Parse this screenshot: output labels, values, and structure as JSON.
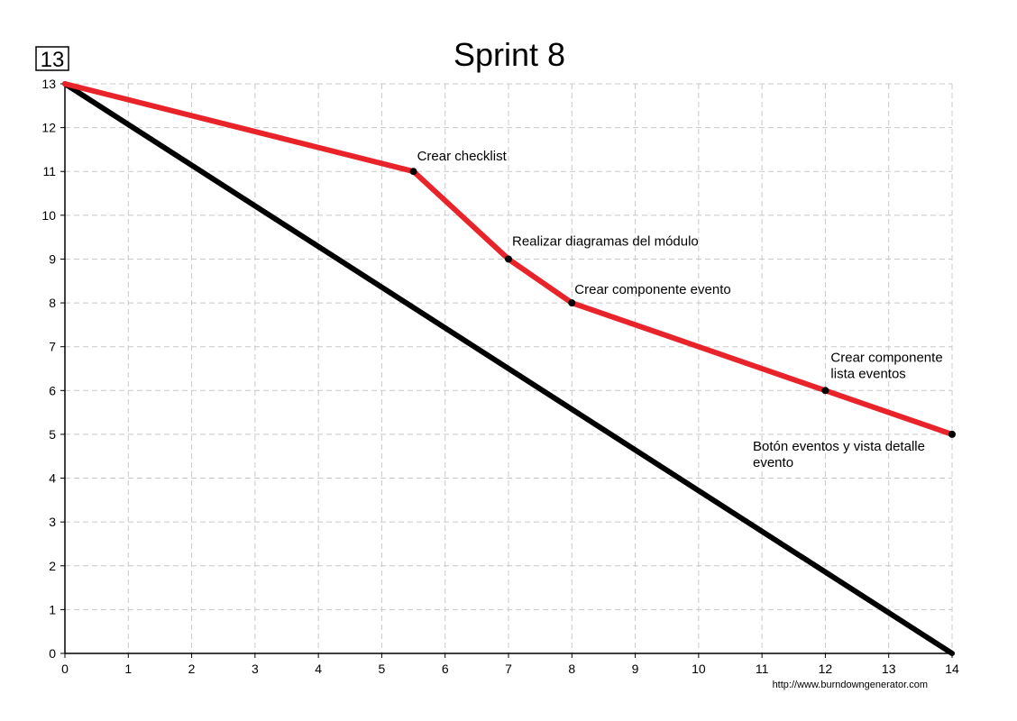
{
  "badge": "13",
  "credit": "http://www.burndowngenerator.com",
  "chart_data": {
    "type": "line",
    "title": "Sprint 8",
    "xlabel": "",
    "ylabel": "",
    "xlim": [
      0,
      14
    ],
    "ylim": [
      0,
      13
    ],
    "x_ticks": [
      0,
      1,
      2,
      3,
      4,
      5,
      6,
      7,
      8,
      9,
      10,
      11,
      12,
      13,
      14
    ],
    "y_ticks": [
      0,
      1,
      2,
      3,
      4,
      5,
      6,
      7,
      8,
      9,
      10,
      11,
      12,
      13
    ],
    "grid": true,
    "series": [
      {
        "color": "#000000",
        "points": [
          [
            0,
            13
          ],
          [
            14,
            0
          ]
        ]
      },
      {
        "color": "#e8232a",
        "points": [
          [
            0,
            13
          ],
          [
            5.5,
            11
          ],
          [
            7,
            9
          ],
          [
            8,
            8
          ],
          [
            12,
            6
          ],
          [
            14,
            5
          ]
        ]
      }
    ],
    "annotations": [
      {
        "x": 5.5,
        "y": 11,
        "lines": [
          "Crear checklist"
        ]
      },
      {
        "x": 7,
        "y": 9,
        "lines": [
          "Realizar diagramas del módulo"
        ]
      },
      {
        "x": 8,
        "y": 8,
        "lines": [
          "Crear componente evento"
        ]
      },
      {
        "x": 12,
        "y": 6,
        "lines": [
          "Crear componente",
          "lista eventos"
        ]
      },
      {
        "x": 14,
        "y": 5,
        "lines": [
          "Botón eventos y vista detalle",
          "evento"
        ]
      }
    ]
  }
}
